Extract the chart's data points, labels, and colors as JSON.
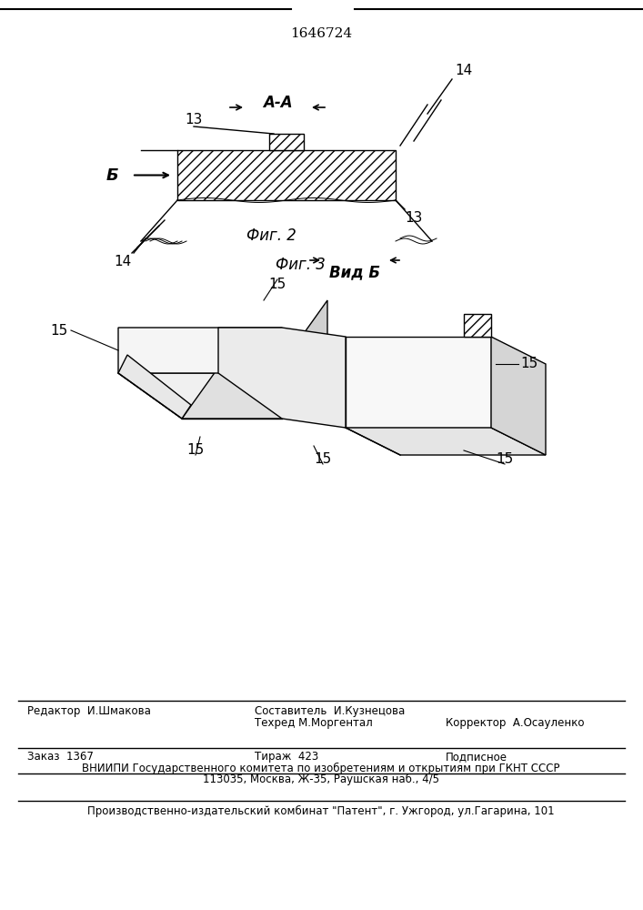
{
  "patent_number": "1646724",
  "fig2_label": "Фиг. 2",
  "fig3_label": "Фиг. 3",
  "section_label": "А-А",
  "view_label": "Вид Б",
  "arrow_label": "Б",
  "labels_13": "13",
  "labels_14": "14",
  "labels_15": "15",
  "footer_line1_left": "Редактор  И.Шмакова",
  "footer_line1_center": "Составитель  И.Кузнецова",
  "footer_line2_center": "Техред М.Моргентал",
  "footer_line2_right": "Корректор  А.Осауленко",
  "footer_line3_left": "Заказ  1367",
  "footer_line3_center": "Тираж  423",
  "footer_line3_right": "Подписное",
  "footer_line4": "ВНИИПИ Государственного комитета по изобретениям и открытиям при ГКНТ СССР",
  "footer_line5": "113035, Москва, Ж-35, Раушская наб., 4/5",
  "footer_line6": "Производственно-издательский комбинат \"Патент\", г. Ужгород, ул.Гагарина, 101",
  "bg_color": "#ffffff",
  "line_color": "#000000",
  "hatch_color": "#000000"
}
